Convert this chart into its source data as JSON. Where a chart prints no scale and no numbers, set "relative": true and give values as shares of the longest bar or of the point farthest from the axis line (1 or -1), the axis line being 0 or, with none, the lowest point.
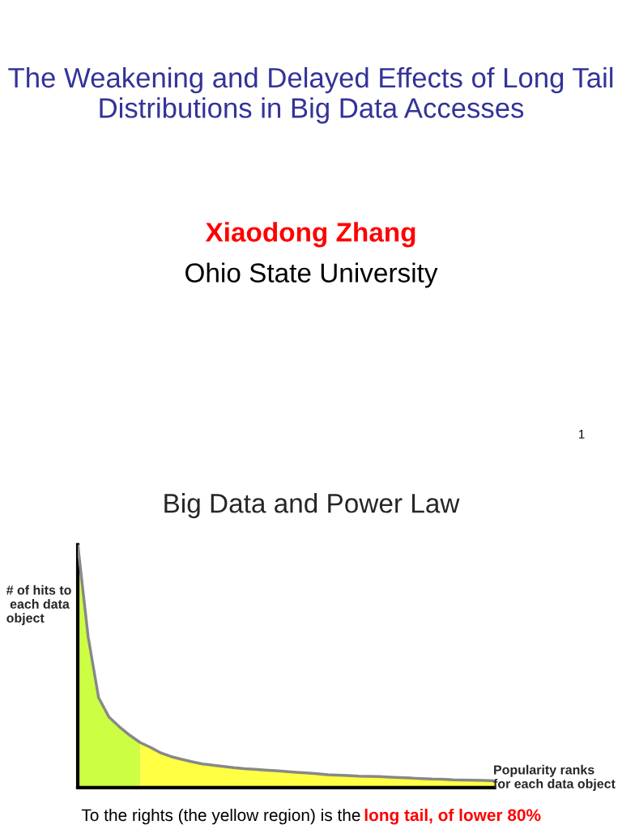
{
  "chart_data": {
    "type": "area",
    "relative": true,
    "title": "Big Data and Power Law",
    "xlabel": "Popularity ranks\nfor each data object",
    "ylabel": "# of hits to\n each data\nobject",
    "annotations": [
      "The Weakening and Delayed Effects of Long Tail Distributions in Big Data Accesses",
      "Xiaodong Zhang",
      "Ohio State University",
      "1",
      "To the rights (the yellow region) is the",
      "long tail, of lower 80%"
    ],
    "categories": [
      null,
      null,
      null,
      null,
      null,
      null,
      null,
      null,
      null,
      null,
      null,
      null,
      null,
      null,
      null,
      null,
      null,
      null,
      null,
      null,
      null,
      null,
      null,
      null,
      null,
      null,
      null,
      null,
      null,
      null,
      null,
      null,
      null,
      null,
      null,
      null,
      null,
      null,
      null,
      null,
      null
    ],
    "series": [
      {
        "color": "#ccff44",
        "values": [
          1.0,
          0.62,
          0.37,
          0.29,
          0.25,
          0.215,
          0.185,
          null,
          null,
          null,
          null,
          null,
          null,
          null,
          null,
          null,
          null,
          null,
          null,
          null,
          null,
          null,
          null,
          null,
          null,
          null,
          null,
          null,
          null,
          null,
          null,
          null,
          null,
          null,
          null,
          null,
          null,
          null,
          null,
          null,
          null
        ]
      },
      {
        "color": "#ffff44",
        "values": [
          null,
          null,
          null,
          null,
          null,
          null,
          0.185,
          0.165,
          0.142,
          0.127,
          0.116,
          0.106,
          0.097,
          0.092,
          0.087,
          0.082,
          0.078,
          0.075,
          0.072,
          0.069,
          0.066,
          0.063,
          0.06,
          0.057,
          0.053,
          0.051,
          0.049,
          0.047,
          0.046,
          0.045,
          0.043,
          0.041,
          0.039,
          0.037,
          0.035,
          0.034,
          0.032,
          0.031,
          0.03,
          0.029,
          0.028
        ]
      },
      {
        "type": "line",
        "color": "#888888",
        "values": [
          1.0,
          0.62,
          0.37,
          0.29,
          0.25,
          0.215,
          0.185,
          0.165,
          0.142,
          0.127,
          0.116,
          0.106,
          0.097,
          0.092,
          0.087,
          0.082,
          0.078,
          0.075,
          0.072,
          0.069,
          0.066,
          0.063,
          0.06,
          0.057,
          0.053,
          0.051,
          0.049,
          0.047,
          0.046,
          0.045,
          0.043,
          0.041,
          0.039,
          0.037,
          0.035,
          0.034,
          0.032,
          0.031,
          0.03,
          0.029,
          0.028
        ]
      }
    ]
  }
}
